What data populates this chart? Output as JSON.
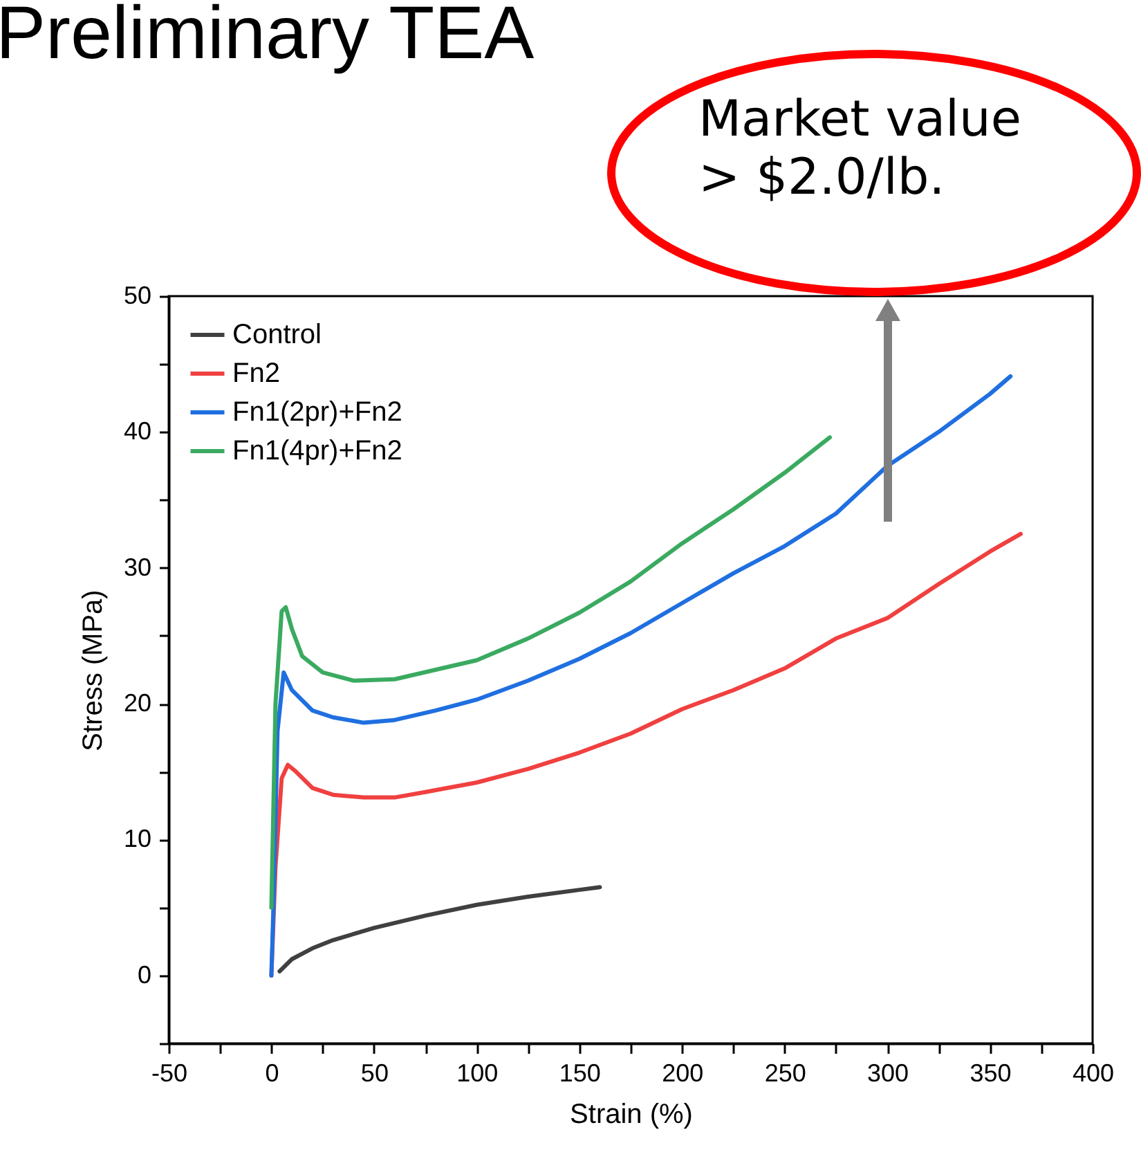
{
  "chart_data": {
    "type": "line",
    "title": "Preliminary TEA",
    "xlabel": "Strain (%)",
    "ylabel": "Stress (MPa)",
    "annotations": [
      "Market value > $2.0/lb."
    ],
    "xlim": [
      -50,
      400
    ],
    "ylim": [
      -5,
      50
    ],
    "xticks": [
      -50,
      {
        "value": -25,
        "label": null
      },
      0,
      {
        "value": 25,
        "label": null
      },
      50,
      {
        "value": 75,
        "label": null
      },
      100,
      {
        "value": 125,
        "label": null
      },
      150,
      {
        "value": 175,
        "label": null
      },
      200,
      {
        "value": 225,
        "label": null
      },
      250,
      {
        "value": 275,
        "label": null
      },
      300,
      {
        "value": 325,
        "label": null
      },
      350,
      {
        "value": 375,
        "label": null
      },
      400
    ],
    "yticks": [
      {
        "value": -5,
        "label": null
      },
      0,
      {
        "value": 5,
        "label": null
      },
      10,
      {
        "value": 15,
        "label": null
      },
      20,
      {
        "value": 25,
        "label": null
      },
      30,
      {
        "value": 35,
        "label": null
      },
      40,
      {
        "value": 45,
        "label": null
      },
      50
    ],
    "grid": false,
    "legend": "top left",
    "line_style": "solid",
    "series": [
      {
        "name": "Control",
        "color": "#404040",
        "x": [
          4,
          10,
          20,
          30,
          50,
          75,
          100,
          125,
          150,
          160
        ],
        "values": [
          0.3,
          1.2,
          2.0,
          2.6,
          3.5,
          4.4,
          5.2,
          5.8,
          6.3,
          6.5
        ]
      },
      {
        "name": "Fn2",
        "color": "#f04040",
        "x": [
          0,
          2,
          5,
          8,
          12,
          20,
          30,
          45,
          60,
          75,
          100,
          125,
          150,
          175,
          200,
          225,
          250,
          275,
          300,
          325,
          350,
          365
        ],
        "values": [
          0,
          8,
          14.5,
          15.5,
          15,
          13.8,
          13.3,
          13.1,
          13.1,
          13.5,
          14.2,
          15.2,
          16.4,
          17.8,
          19.6,
          21,
          22.6,
          24.8,
          26.3,
          28.8,
          31.2,
          32.5
        ]
      },
      {
        "name": "Fn1(2pr)+Fn2",
        "color": "#1f6fe0",
        "x": [
          0,
          1,
          3,
          6,
          10,
          20,
          30,
          45,
          60,
          80,
          100,
          125,
          150,
          175,
          200,
          225,
          250,
          275,
          300,
          325,
          350,
          360
        ],
        "values": [
          0,
          5,
          18,
          22.3,
          21,
          19.5,
          19,
          18.6,
          18.8,
          19.5,
          20.3,
          21.7,
          23.3,
          25.2,
          27.4,
          29.6,
          31.6,
          34,
          37.5,
          40,
          42.8,
          44.1
        ]
      },
      {
        "name": "Fn1(4pr)+Fn2",
        "color": "#3aaa60",
        "x": [
          0,
          2,
          5,
          7,
          10,
          15,
          25,
          40,
          60,
          80,
          100,
          125,
          150,
          175,
          200,
          225,
          250,
          272
        ],
        "values": [
          5,
          20,
          26.8,
          27.1,
          25.5,
          23.5,
          22.3,
          21.7,
          21.8,
          22.5,
          23.2,
          24.8,
          26.7,
          29,
          31.8,
          34.3,
          37,
          39.6
        ]
      }
    ]
  }
}
